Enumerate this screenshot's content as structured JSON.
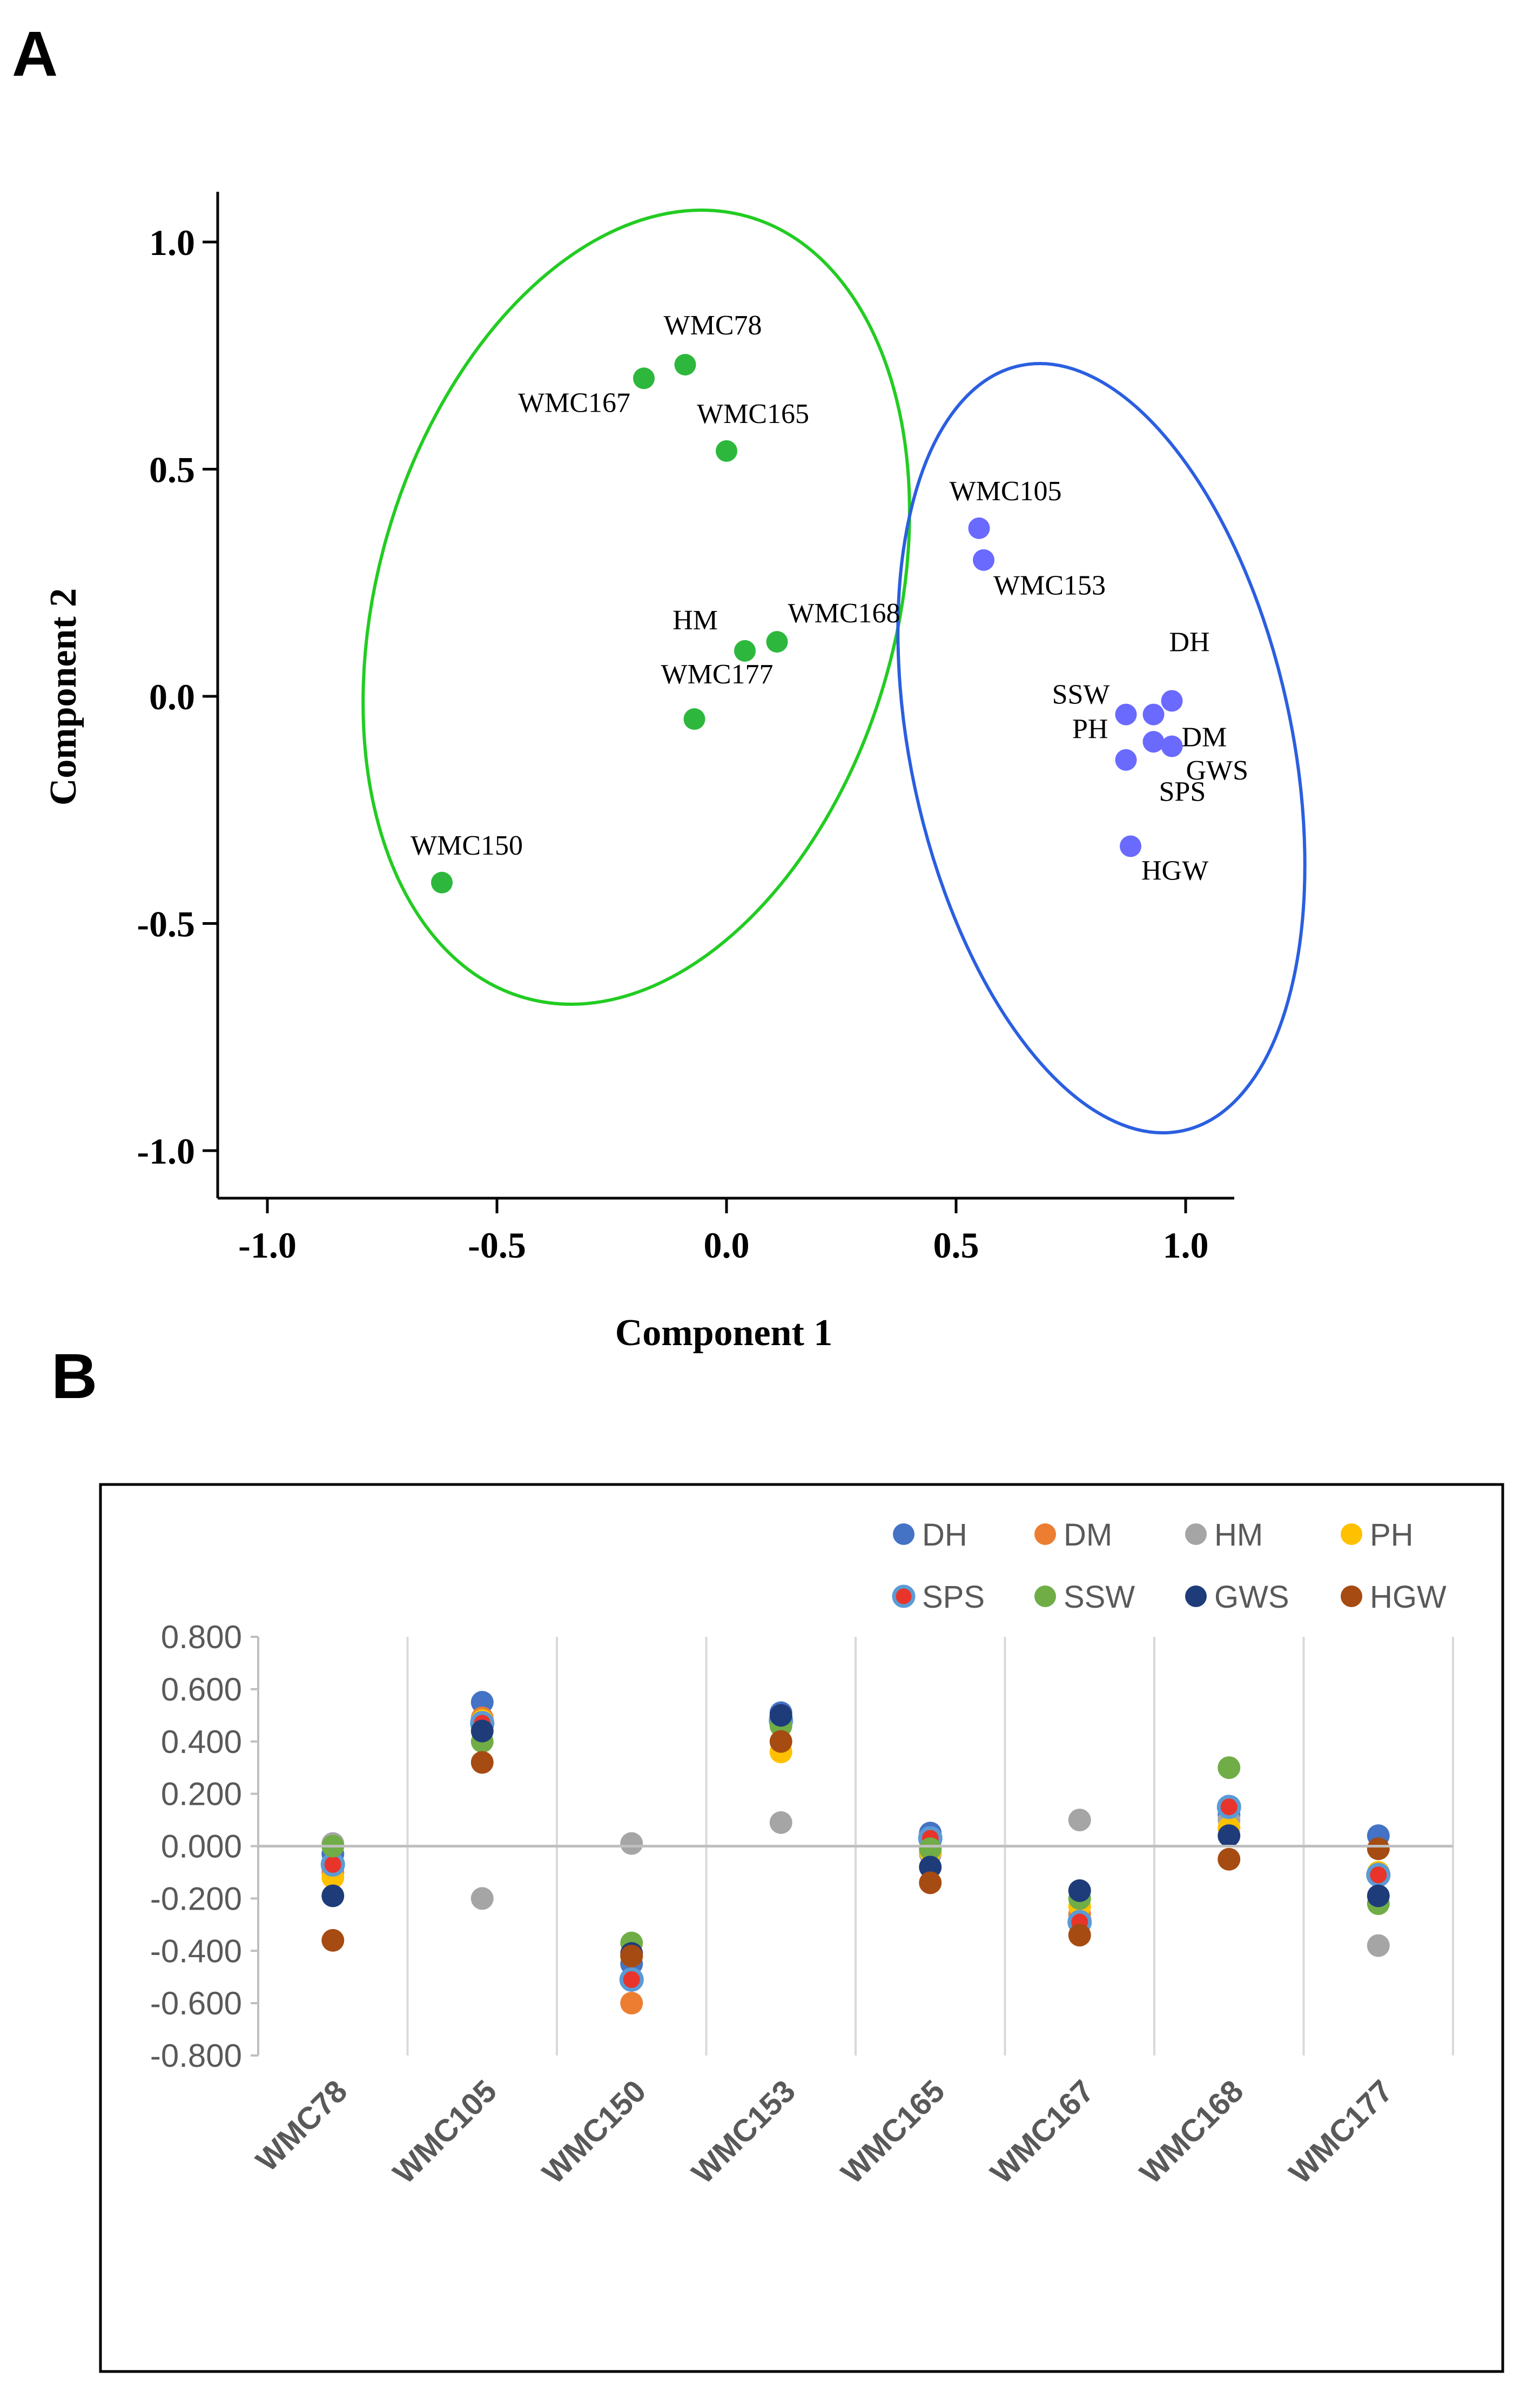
{
  "panels": {
    "a_label": "A",
    "b_label": "B"
  },
  "chart_data": [
    {
      "type": "scatter",
      "title": "",
      "xlabel": "Component 1",
      "ylabel": "Component 2",
      "xlim": [
        -1.1,
        1.1
      ],
      "ylim": [
        -1.1,
        1.1
      ],
      "xticks": [
        "-1.0",
        "-0.5",
        "0.0",
        "0.5",
        "1.0"
      ],
      "yticks": [
        "1.0",
        "0.5",
        "0.0",
        "-0.5",
        "-1.0"
      ],
      "colors": {
        "group1": "#2db83d",
        "group2": "#6a6aff",
        "ellipse1": "#22cc22",
        "ellipse2": "#2b5fe0"
      },
      "groups": [
        {
          "name": "markers",
          "points": [
            {
              "label": "WMC78",
              "x": -0.09,
              "y": 0.73
            },
            {
              "label": "WMC167",
              "x": -0.18,
              "y": 0.7
            },
            {
              "label": "WMC165",
              "x": 0.0,
              "y": 0.54
            },
            {
              "label": "WMC168",
              "x": 0.11,
              "y": 0.12
            },
            {
              "label": "HM",
              "x": 0.04,
              "y": 0.1
            },
            {
              "label": "WMC177",
              "x": -0.07,
              "y": -0.05
            },
            {
              "label": "WMC150",
              "x": -0.62,
              "y": -0.41
            }
          ]
        },
        {
          "name": "traits",
          "points": [
            {
              "label": "WMC105",
              "x": 0.55,
              "y": 0.37
            },
            {
              "label": "WMC153",
              "x": 0.56,
              "y": 0.3
            },
            {
              "label": "DH",
              "x": 0.97,
              "y": -0.01
            },
            {
              "label": "SSW",
              "x": 0.87,
              "y": -0.04
            },
            {
              "label": "PH",
              "x": 0.87,
              "y": -0.14
            },
            {
              "label": "DM",
              "x": 0.97,
              "y": -0.11
            },
            {
              "label": "GWS",
              "x": 0.93,
              "y": -0.1
            },
            {
              "label": "SPS",
              "x": 0.93,
              "y": -0.04
            },
            {
              "label": "HGW",
              "x": 0.88,
              "y": -0.33
            }
          ]
        }
      ]
    },
    {
      "type": "scatter",
      "title": "",
      "xlabel": "",
      "ylabel": "",
      "ylim": [
        -0.8,
        0.8
      ],
      "yticks": [
        "0.800",
        "0.600",
        "0.400",
        "0.200",
        "0.000",
        "-0.200",
        "-0.400",
        "-0.600",
        "-0.800"
      ],
      "categories": [
        "WMC78",
        "WMC105",
        "WMC150",
        "WMC153",
        "WMC165",
        "WMC167",
        "WMC168",
        "WMC177"
      ],
      "series": [
        {
          "name": "DH",
          "color": "#4472c4",
          "values": [
            -0.03,
            0.55,
            -0.45,
            0.51,
            0.05,
            -0.28,
            0.12,
            0.04
          ]
        },
        {
          "name": "DM",
          "color": "#ed7d31",
          "values": [
            -0.1,
            0.49,
            -0.6,
            0.48,
            0.02,
            -0.26,
            0.15,
            -0.11
          ]
        },
        {
          "name": "HM",
          "color": "#a5a5a5",
          "values": [
            0.01,
            -0.2,
            0.01,
            0.09,
            -0.03,
            0.1,
            0.1,
            -0.38
          ]
        },
        {
          "name": "PH",
          "color": "#ffc000",
          "values": [
            -0.12,
            0.48,
            -0.42,
            0.36,
            -0.02,
            -0.23,
            0.07,
            -0.1
          ]
        },
        {
          "name": "SPS",
          "color": "#e8342a",
          "values": [
            -0.07,
            0.47,
            -0.51,
            0.48,
            0.03,
            -0.29,
            0.15,
            -0.11
          ]
        },
        {
          "name": "SSW",
          "color": "#70ad47",
          "values": [
            0.0,
            0.4,
            -0.37,
            0.46,
            -0.01,
            -0.2,
            0.3,
            -0.22
          ]
        },
        {
          "name": "GWS",
          "color": "#1f3c7a",
          "values": [
            -0.19,
            0.44,
            -0.41,
            0.5,
            -0.08,
            -0.17,
            0.04,
            -0.19
          ]
        },
        {
          "name": "HGW",
          "color": "#a64b12",
          "values": [
            -0.36,
            0.32,
            -0.42,
            0.4,
            -0.14,
            -0.34,
            -0.05,
            -0.01
          ]
        }
      ]
    }
  ]
}
